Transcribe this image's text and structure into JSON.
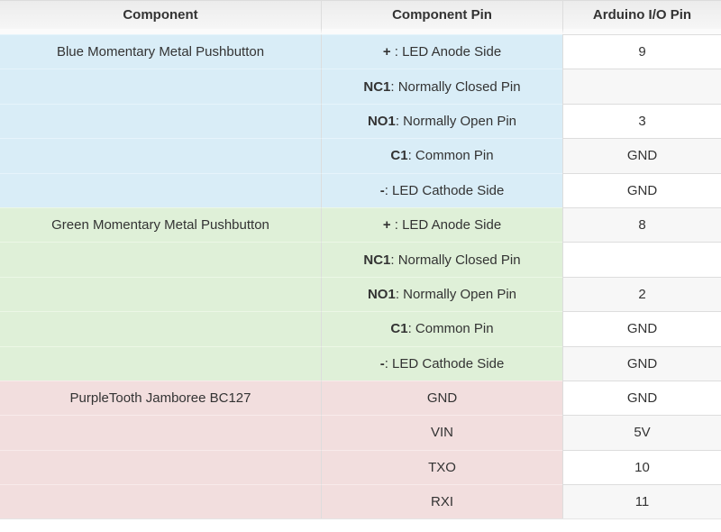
{
  "table": {
    "headers": [
      {
        "label": "Component"
      },
      {
        "label": "Component Pin"
      },
      {
        "label": "Arduino I/O Pin"
      }
    ],
    "rows": [
      {
        "section": "blue",
        "component": "Blue Momentary Metal Pushbutton",
        "pin_bold": "+",
        "pin_rest": " : LED Anode Side",
        "io": "9"
      },
      {
        "section": "blue",
        "component": "",
        "pin_bold": "NC1",
        "pin_rest": ": Normally Closed Pin",
        "io": ""
      },
      {
        "section": "blue",
        "component": "",
        "pin_bold": "NO1",
        "pin_rest": ": Normally Open Pin",
        "io": "3"
      },
      {
        "section": "blue",
        "component": "",
        "pin_bold": "C1",
        "pin_rest": ": Common Pin",
        "io": "GND"
      },
      {
        "section": "blue",
        "component": "",
        "pin_bold": "-",
        "pin_rest": ": LED Cathode Side",
        "io": "GND"
      },
      {
        "section": "green",
        "component": "Green Momentary Metal Pushbutton",
        "pin_bold": "+",
        "pin_rest": " : LED Anode Side",
        "io": "8"
      },
      {
        "section": "green",
        "component": "",
        "pin_bold": "NC1",
        "pin_rest": ": Normally Closed Pin",
        "io": ""
      },
      {
        "section": "green",
        "component": "",
        "pin_bold": "NO1",
        "pin_rest": ": Normally Open Pin",
        "io": "2"
      },
      {
        "section": "green",
        "component": "",
        "pin_bold": "C1",
        "pin_rest": ": Common Pin",
        "io": "GND"
      },
      {
        "section": "green",
        "component": "",
        "pin_bold": "-",
        "pin_rest": ": LED Cathode Side",
        "io": "GND"
      },
      {
        "section": "pink",
        "component": "PurpleTooth Jamboree BC127",
        "pin_bold": "",
        "pin_rest": "GND",
        "io": "GND"
      },
      {
        "section": "pink",
        "component": "",
        "pin_bold": "",
        "pin_rest": "VIN",
        "io": "5V"
      },
      {
        "section": "pink",
        "component": "",
        "pin_bold": "",
        "pin_rest": "TXO",
        "io": "10"
      },
      {
        "section": "pink",
        "component": "",
        "pin_bold": "",
        "pin_rest": "RXI",
        "io": "11"
      }
    ],
    "colors": {
      "blue": "#d9edf7",
      "green": "#dff0d8",
      "pink": "#f2dede",
      "header_bg": "#f0f0f0",
      "stripe": "#f7f7f7",
      "border": "#dddddd"
    }
  }
}
